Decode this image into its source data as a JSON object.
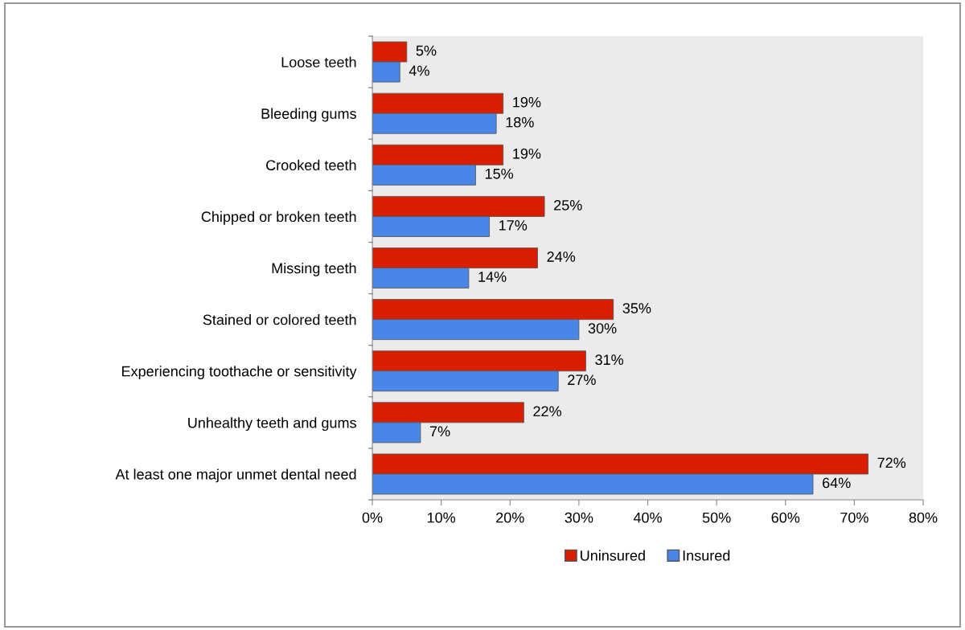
{
  "chart_data": {
    "type": "bar",
    "orientation": "horizontal",
    "categories": [
      "Loose teeth",
      "Bleeding gums",
      "Crooked teeth",
      "Chipped or broken teeth",
      "Missing teeth",
      "Stained or colored teeth",
      "Experiencing toothache or sensitivity",
      "Unhealthy teeth and gums",
      "At least one major unmet dental need"
    ],
    "series": [
      {
        "name": "Uninsured",
        "color": "#d91e00",
        "values": [
          5,
          19,
          19,
          25,
          24,
          35,
          31,
          22,
          72
        ],
        "value_labels": [
          "5%",
          "19%",
          "19%",
          "25%",
          "24%",
          "35%",
          "31%",
          "22%",
          "72%"
        ]
      },
      {
        "name": "Insured",
        "color": "#4a86e8",
        "values": [
          4,
          18,
          15,
          17,
          14,
          30,
          27,
          7,
          64
        ],
        "value_labels": [
          "4%",
          "18%",
          "15%",
          "17%",
          "14%",
          "30%",
          "27%",
          "7%",
          "64%"
        ]
      }
    ],
    "xlim": [
      0,
      80
    ],
    "xticks": [
      {
        "value": 0,
        "label": "0%"
      },
      {
        "value": 10,
        "label": "10%"
      },
      {
        "value": 20,
        "label": "20%"
      },
      {
        "value": 30,
        "label": "30%"
      },
      {
        "value": 40,
        "label": "40%"
      },
      {
        "value": 50,
        "label": "50%"
      },
      {
        "value": 60,
        "label": "60%"
      },
      {
        "value": 70,
        "label": "70%"
      },
      {
        "value": 80,
        "label": "80%"
      }
    ],
    "grid": false,
    "legend": "bottom"
  }
}
